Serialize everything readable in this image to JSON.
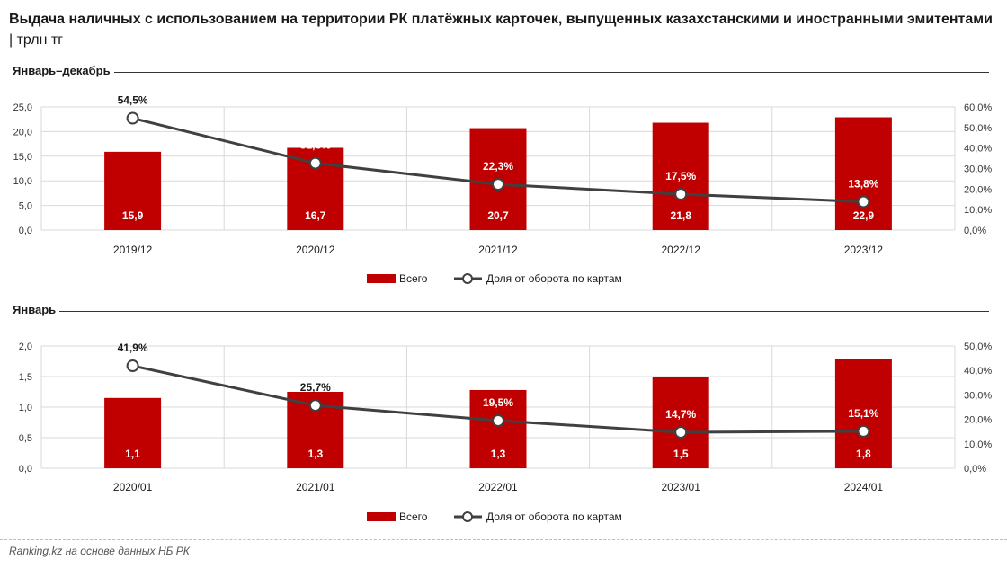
{
  "title_main": "Выдача наличных с использованием на территории РК платёжных карточек, выпущенных казахстанскими и иностранными эмитентами",
  "title_unit": " | трлн тг",
  "source": "Ranking.kz на основе данных НБ РК",
  "colors": {
    "bar": "#c00000",
    "line": "#404040",
    "marker_fill": "#ffffff"
  },
  "chart_data": [
    {
      "type": "bar+line",
      "section_label": "Январь–декабрь",
      "categories": [
        "2019/12",
        "2020/12",
        "2021/12",
        "2022/12",
        "2023/12"
      ],
      "series": [
        {
          "name": "Всего",
          "type": "bar",
          "axis": "left",
          "values": [
            15.9,
            16.7,
            20.7,
            21.8,
            22.9
          ],
          "labels": [
            "15,9",
            "16,7",
            "20,7",
            "21,8",
            "22,9"
          ]
        },
        {
          "name": "Доля от оборота по картам",
          "type": "line",
          "axis": "right",
          "values": [
            54.5,
            32.6,
            22.3,
            17.5,
            13.8
          ],
          "labels": [
            "54,5%",
            "32,6%",
            "22,3%",
            "17,5%",
            "13,8%"
          ]
        }
      ],
      "ylim": [
        0,
        25
      ],
      "yticks": [
        "0,0",
        "5,0",
        "10,0",
        "15,0",
        "20,0",
        "25,0"
      ],
      "y2lim": [
        0,
        60
      ],
      "y2ticks": [
        "0,0%",
        "10,0%",
        "20,0%",
        "30,0%",
        "40,0%",
        "50,0%",
        "60,0%"
      ],
      "legend": [
        "Всего",
        "Доля от оборота по картам"
      ],
      "legend_position": "bottom-center",
      "grid": true
    },
    {
      "type": "bar+line",
      "section_label": "Январь",
      "categories": [
        "2020/01",
        "2021/01",
        "2022/01",
        "2023/01",
        "2024/01"
      ],
      "series": [
        {
          "name": "Всего",
          "type": "bar",
          "axis": "left",
          "values": [
            1.15,
            1.25,
            1.28,
            1.5,
            1.78
          ],
          "labels": [
            "1,1",
            "1,3",
            "1,3",
            "1,5",
            "1,8"
          ]
        },
        {
          "name": "Доля от оборота по картам",
          "type": "line",
          "axis": "right",
          "values": [
            41.9,
            25.7,
            19.5,
            14.7,
            15.1
          ],
          "labels": [
            "41,9%",
            "25,7%",
            "19,5%",
            "14,7%",
            "15,1%"
          ]
        }
      ],
      "ylim": [
        0,
        2
      ],
      "yticks": [
        "0,0",
        "0,5",
        "1,0",
        "1,5",
        "2,0"
      ],
      "y2lim": [
        0,
        50
      ],
      "y2ticks": [
        "0,0%",
        "10,0%",
        "20,0%",
        "30,0%",
        "40,0%",
        "50,0%"
      ],
      "legend": [
        "Всего",
        "Доля от оборота по картам"
      ],
      "legend_position": "bottom-center",
      "grid": true
    }
  ]
}
